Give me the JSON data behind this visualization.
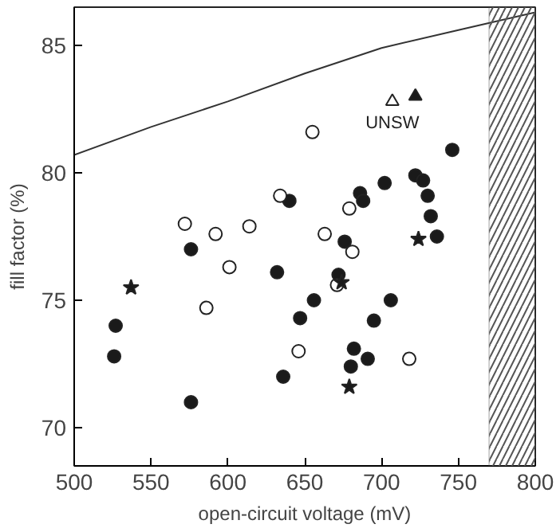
{
  "chart_data": {
    "type": "scatter",
    "xlabel": "open-circuit voltage (mV)",
    "ylabel": "fill factor (%)",
    "xlim": [
      500,
      800
    ],
    "ylim": [
      68.5,
      86.5
    ],
    "xticks": [
      500,
      550,
      600,
      650,
      700,
      750,
      800
    ],
    "yticks": [
      70,
      75,
      80,
      85
    ],
    "grid": false,
    "series": [
      {
        "type": "line",
        "color": "#333333",
        "marker": "none",
        "x": [
          500,
          550,
          600,
          650,
          700,
          750,
          800
        ],
        "values": [
          80.7,
          81.8,
          82.8,
          83.9,
          84.9,
          85.6,
          86.3
        ]
      },
      {
        "color": "#1a1a1a",
        "marker": "circle",
        "x": [
          527,
          526,
          576,
          576,
          632,
          636,
          647,
          656,
          640,
          746,
          722,
          727,
          702,
          686,
          688,
          730,
          732,
          736,
          676,
          672,
          706,
          695,
          682,
          680,
          691
        ],
        "values": [
          74.0,
          72.8,
          77.0,
          71.0,
          76.1,
          72.0,
          74.3,
          75.0,
          78.9,
          80.9,
          79.9,
          79.7,
          79.6,
          79.2,
          78.9,
          79.1,
          78.3,
          77.5,
          77.3,
          76.0,
          75.0,
          74.2,
          73.1,
          72.4,
          72.7
        ]
      },
      {
        "color": "#ffffff",
        "marker": "circle",
        "x": [
          655,
          572,
          592,
          614,
          634,
          601,
          586,
          646,
          679,
          663,
          681,
          671,
          718
        ],
        "values": [
          81.6,
          78.0,
          77.6,
          77.9,
          79.1,
          76.3,
          74.7,
          73.0,
          78.6,
          77.6,
          76.9,
          75.6,
          72.7
        ]
      },
      {
        "color": "#1a1a1a",
        "marker": "star",
        "x": [
          537,
          724,
          674,
          679
        ],
        "values": [
          75.5,
          77.4,
          75.7,
          71.6
        ]
      },
      {
        "color": "#1a1a1a",
        "marker": "triangle",
        "x": [
          722
        ],
        "values": [
          83.0
        ]
      },
      {
        "color": "#ffffff",
        "marker": "triangle",
        "x": [
          707
        ],
        "values": [
          82.8
        ]
      }
    ],
    "bands": [
      {
        "axis": "x",
        "from": 770,
        "to": 800,
        "color": "#555555"
      }
    ],
    "annotations": [
      {
        "text": "UNSW",
        "x": 707,
        "y": 82.8
      }
    ]
  }
}
